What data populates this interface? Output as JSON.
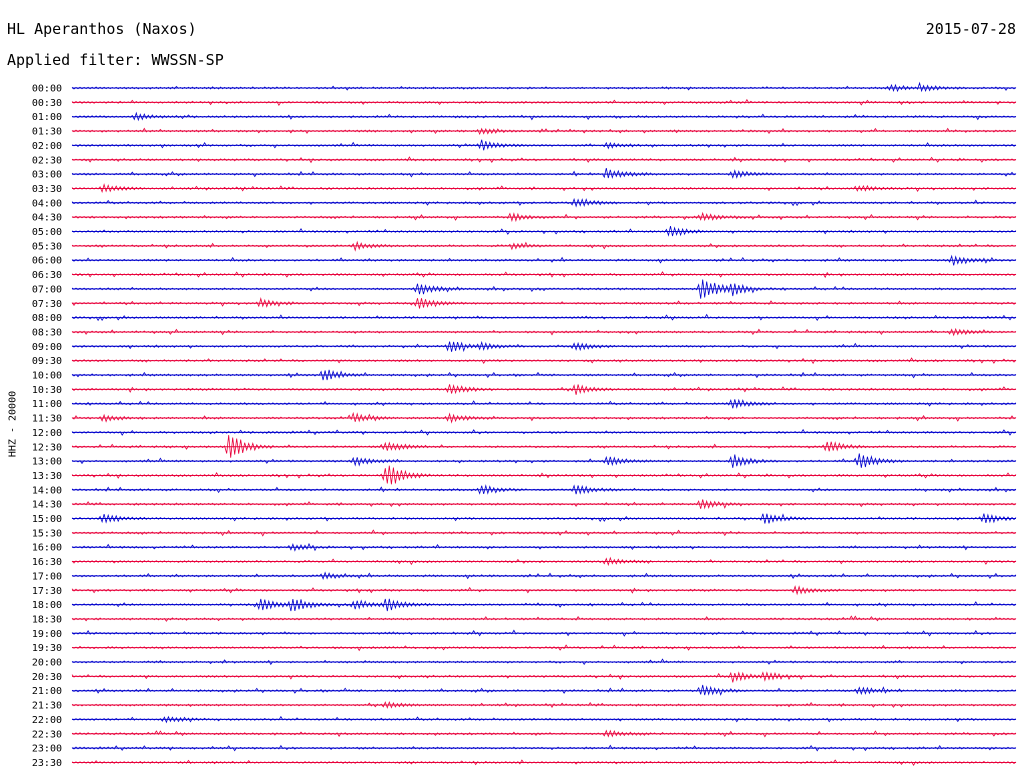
{
  "header": {
    "title": "HL Aperanthos (Naxos)",
    "date": "2015-07-28",
    "filter": "Applied filter: WWSSN-SP"
  },
  "chart_data": {
    "type": "line",
    "ylabel": "HHZ - 20000",
    "row_labels": [
      "00:00",
      "00:30",
      "01:00",
      "01:30",
      "02:00",
      "02:30",
      "03:00",
      "03:30",
      "04:00",
      "04:30",
      "05:00",
      "05:30",
      "06:00",
      "06:30",
      "07:00",
      "07:30",
      "08:00",
      "08:30",
      "09:00",
      "09:30",
      "10:00",
      "10:30",
      "11:00",
      "11:30",
      "12:00",
      "12:30",
      "13:00",
      "13:30",
      "14:00",
      "14:30",
      "15:00",
      "15:30",
      "16:00",
      "16:30",
      "17:00",
      "17:30",
      "18:00",
      "18:30",
      "19:00",
      "19:30",
      "20:00",
      "20:30",
      "21:00",
      "21:30",
      "22:00",
      "22:30",
      "23:00",
      "23:30"
    ],
    "series_colors": [
      "#0000cc",
      "#e8003a"
    ],
    "row_minutes": 30,
    "events": [
      {
        "row": 0,
        "minute": 27,
        "amp": 3
      },
      {
        "row": 0,
        "minute": 26,
        "amp": 3
      },
      {
        "row": 2,
        "minute": 2,
        "amp": 3
      },
      {
        "row": 3,
        "minute": 13,
        "amp": 3
      },
      {
        "row": 4,
        "minute": 13,
        "amp": 5
      },
      {
        "row": 4,
        "minute": 17,
        "amp": 3
      },
      {
        "row": 6,
        "minute": 17,
        "amp": 6
      },
      {
        "row": 6,
        "minute": 21,
        "amp": 4
      },
      {
        "row": 7,
        "minute": 1,
        "amp": 4
      },
      {
        "row": 7,
        "minute": 25,
        "amp": 3
      },
      {
        "row": 8,
        "minute": 16,
        "amp": 5
      },
      {
        "row": 9,
        "minute": 14,
        "amp": 4
      },
      {
        "row": 9,
        "minute": 20,
        "amp": 4
      },
      {
        "row": 10,
        "minute": 19,
        "amp": 5
      },
      {
        "row": 11,
        "minute": 9,
        "amp": 4
      },
      {
        "row": 11,
        "minute": 14,
        "amp": 3
      },
      {
        "row": 12,
        "minute": 28,
        "amp": 5
      },
      {
        "row": 14,
        "minute": 11,
        "amp": 6
      },
      {
        "row": 14,
        "minute": 20,
        "amp": 14
      },
      {
        "row": 14,
        "minute": 21,
        "amp": 5
      },
      {
        "row": 15,
        "minute": 6,
        "amp": 4
      },
      {
        "row": 15,
        "minute": 11,
        "amp": 6
      },
      {
        "row": 17,
        "minute": 28,
        "amp": 4
      },
      {
        "row": 18,
        "minute": 12,
        "amp": 6
      },
      {
        "row": 18,
        "minute": 13,
        "amp": 4
      },
      {
        "row": 18,
        "minute": 16,
        "amp": 4
      },
      {
        "row": 20,
        "minute": 8,
        "amp": 6
      },
      {
        "row": 21,
        "minute": 12,
        "amp": 6
      },
      {
        "row": 21,
        "minute": 16,
        "amp": 5
      },
      {
        "row": 22,
        "minute": 21,
        "amp": 5
      },
      {
        "row": 23,
        "minute": 1,
        "amp": 3
      },
      {
        "row": 23,
        "minute": 9,
        "amp": 4
      },
      {
        "row": 23,
        "minute": 12,
        "amp": 4
      },
      {
        "row": 25,
        "minute": 5,
        "amp": 14
      },
      {
        "row": 25,
        "minute": 10,
        "amp": 5
      },
      {
        "row": 25,
        "minute": 24,
        "amp": 6
      },
      {
        "row": 26,
        "minute": 9,
        "amp": 5
      },
      {
        "row": 26,
        "minute": 17,
        "amp": 5
      },
      {
        "row": 26,
        "minute": 21,
        "amp": 6
      },
      {
        "row": 26,
        "minute": 25,
        "amp": 8
      },
      {
        "row": 27,
        "minute": 10,
        "amp": 12
      },
      {
        "row": 28,
        "minute": 13,
        "amp": 5
      },
      {
        "row": 28,
        "minute": 16,
        "amp": 5
      },
      {
        "row": 29,
        "minute": 20,
        "amp": 5
      },
      {
        "row": 30,
        "minute": 1,
        "amp": 5
      },
      {
        "row": 30,
        "minute": 22,
        "amp": 6
      },
      {
        "row": 30,
        "minute": 29,
        "amp": 5
      },
      {
        "row": 32,
        "minute": 7,
        "amp": 3
      },
      {
        "row": 33,
        "minute": 17,
        "amp": 4
      },
      {
        "row": 34,
        "minute": 8,
        "amp": 3
      },
      {
        "row": 35,
        "minute": 23,
        "amp": 4
      },
      {
        "row": 36,
        "minute": 6,
        "amp": 6
      },
      {
        "row": 36,
        "minute": 7,
        "amp": 7
      },
      {
        "row": 36,
        "minute": 9,
        "amp": 5
      },
      {
        "row": 36,
        "minute": 10,
        "amp": 6
      },
      {
        "row": 41,
        "minute": 21,
        "amp": 5
      },
      {
        "row": 41,
        "minute": 22,
        "amp": 4
      },
      {
        "row": 42,
        "minute": 20,
        "amp": 6
      },
      {
        "row": 42,
        "minute": 25,
        "amp": 4
      },
      {
        "row": 43,
        "minute": 10,
        "amp": 3
      },
      {
        "row": 44,
        "minute": 3,
        "amp": 3
      },
      {
        "row": 45,
        "minute": 17,
        "amp": 3
      }
    ]
  }
}
